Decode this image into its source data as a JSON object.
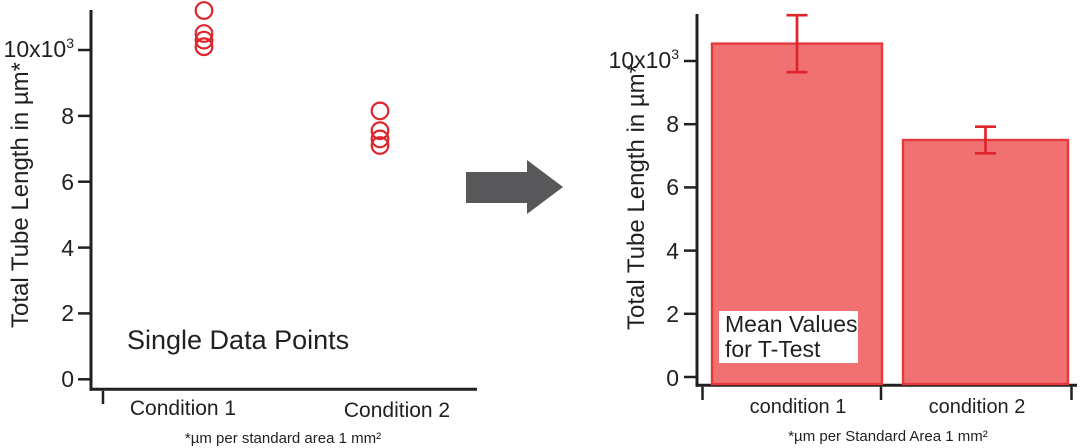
{
  "figure": {
    "background": "#ffffff",
    "text_color": "#231f20",
    "arrow": {
      "name": "transform-arrow",
      "direction": "right",
      "color": "#58585a"
    }
  },
  "chart_data": [
    {
      "type": "scatter",
      "annotation": "Single Data Points",
      "ylabel": "Total Tube Length in µm*",
      "footnote": "*µm per standard area 1 mm²",
      "categories": [
        "Condition 1",
        "Condition 2"
      ],
      "y_tick_labels": [
        "0",
        "2",
        "4",
        "6",
        "8"
      ],
      "y_top_label": {
        "base": "10x10",
        "sup": "3"
      },
      "ylim": [
        0,
        11.8
      ],
      "y_unit": "x10³ µm per standard area",
      "grid": false,
      "marker": {
        "shape": "open-circle",
        "color": "#e0242b"
      },
      "series": [
        {
          "name": "Condition 1",
          "values": [
            11.2,
            10.5,
            10.3,
            10.1
          ]
        },
        {
          "name": "Condition 2",
          "values": [
            8.15,
            7.55,
            7.3,
            7.1
          ]
        }
      ]
    },
    {
      "type": "bar",
      "annotation_lines": [
        "Mean Values",
        "for T-Test"
      ],
      "ylabel": "Total Tube Length in µm*",
      "footnote": "*µm per Standard Area 1 mm²",
      "categories": [
        "condition 1",
        "condition 2"
      ],
      "y_tick_labels": [
        "0",
        "2",
        "4",
        "6",
        "8"
      ],
      "y_top_label": {
        "base": "10x10",
        "sup": "3"
      },
      "ylim": [
        0,
        11.8
      ],
      "y_unit": "x10³ µm per standard area",
      "grid": false,
      "values": [
        10.55,
        7.5
      ],
      "errors": [
        0.9,
        0.42
      ],
      "bar_fill": "#f17172",
      "bar_stroke": "#e6393d",
      "error_color": "#e0242b"
    }
  ]
}
